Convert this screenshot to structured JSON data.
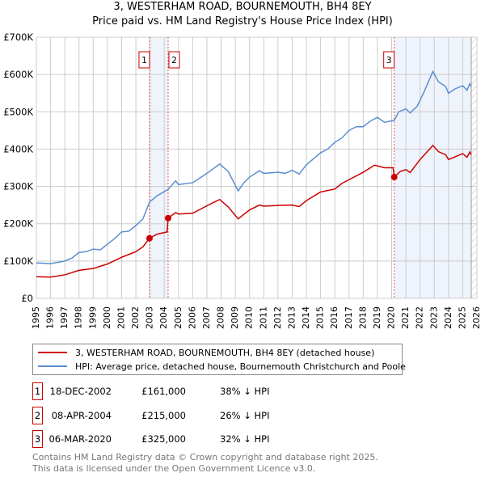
{
  "chart_data": {
    "type": "line",
    "title": "3, WESTERHAM ROAD, BOURNEMOUTH, BH4 8EY",
    "subtitle": "Price paid vs. HM Land Registry's House Price Index (HPI)",
    "xlim": [
      1995,
      2026
    ],
    "ylim": [
      0,
      700000
    ],
    "y_ticks": [
      0,
      100000,
      200000,
      300000,
      400000,
      500000,
      600000,
      700000
    ],
    "y_tick_labels": [
      "£0",
      "£100K",
      "£200K",
      "£300K",
      "£400K",
      "£500K",
      "£600K",
      "£700K"
    ],
    "x_ticks": [
      1995,
      1996,
      1997,
      1998,
      1999,
      2000,
      2001,
      2002,
      2003,
      2004,
      2005,
      2006,
      2007,
      2008,
      2009,
      2010,
      2011,
      2012,
      2013,
      2014,
      2015,
      2016,
      2017,
      2018,
      2019,
      2020,
      2021,
      2022,
      2023,
      2024,
      2025,
      2026
    ],
    "grid": true,
    "shaded": [
      [
        2002.96,
        2004.27
      ],
      [
        2020.18,
        2025.6
      ]
    ],
    "hatched_from": 2025.6,
    "series": [
      {
        "name": "3, WESTERHAM ROAD, BOURNEMOUTH, BH4 8EY (detached house)",
        "color": "#cc0000",
        "x": [
          1995,
          1996,
          1997,
          1998,
          1999,
          2000,
          2001,
          2002,
          2002.5,
          2002.96,
          2003.5,
          2004.2,
          2004.27,
          2004.8,
          2005,
          2006,
          2007,
          2007.9,
          2008.5,
          2009.2,
          2010,
          2010.7,
          2011,
          2012,
          2013,
          2013.5,
          2014,
          2015,
          2016,
          2016.5,
          2017,
          2018,
          2018.8,
          2019.5,
          2020.1,
          2020.18,
          2020.6,
          2021,
          2021.3,
          2022,
          2022.9,
          2023.3,
          2023.8,
          2024,
          2024.5,
          2025,
          2025.3,
          2025.5,
          2025.6
        ],
        "y": [
          58000,
          57000,
          63000,
          75000,
          80000,
          92000,
          110000,
          125000,
          138000,
          161000,
          172000,
          178000,
          215000,
          230000,
          226000,
          228000,
          248000,
          265000,
          245000,
          213000,
          237000,
          250000,
          247000,
          249000,
          250000,
          246000,
          262000,
          285000,
          293000,
          308000,
          318000,
          338000,
          357000,
          350000,
          350000,
          325000,
          340000,
          345000,
          337000,
          372000,
          410000,
          393000,
          385000,
          372000,
          380000,
          388000,
          378000,
          392000,
          385000
        ]
      },
      {
        "name": "HPI: Average price, detached house, Bournemouth Christchurch and Poole",
        "color": "#5b8fd0",
        "x": [
          1995,
          1996,
          1997,
          1997.5,
          1998,
          1998.5,
          1999,
          1999.5,
          2000,
          2000.5,
          2001,
          2001.5,
          2002,
          2002.5,
          2002.96,
          2003.5,
          2004.27,
          2004.8,
          2005,
          2006,
          2007,
          2007.9,
          2008.5,
          2009.2,
          2009.6,
          2010,
          2010.7,
          2011,
          2012,
          2012.5,
          2013,
          2013.5,
          2014,
          2015,
          2015.5,
          2016,
          2016.5,
          2017,
          2017.5,
          2018,
          2018.5,
          2019,
          2019.5,
          2020.18,
          2020.5,
          2021,
          2021.3,
          2021.8,
          2022.3,
          2022.9,
          2023.3,
          2023.8,
          2024,
          2024.5,
          2025,
          2025.3,
          2025.5,
          2025.6
        ],
        "y": [
          95000,
          93000,
          100000,
          108000,
          123000,
          125000,
          132000,
          130000,
          145000,
          160000,
          178000,
          180000,
          195000,
          213000,
          258000,
          275000,
          292000,
          315000,
          305000,
          310000,
          335000,
          360000,
          340000,
          288000,
          310000,
          325000,
          342000,
          335000,
          338000,
          335000,
          343000,
          333000,
          358000,
          390000,
          400000,
          418000,
          430000,
          450000,
          460000,
          460000,
          475000,
          485000,
          472000,
          477000,
          500000,
          508000,
          497000,
          515000,
          555000,
          608000,
          580000,
          568000,
          550000,
          562000,
          570000,
          558000,
          575000,
          568000
        ]
      }
    ],
    "sales": [
      {
        "label": "1",
        "x": 2002.96,
        "y": 161000,
        "date": "18-DEC-2002",
        "price": "£161,000",
        "hpi": "38% ↓ HPI"
      },
      {
        "label": "2",
        "x": 2004.27,
        "y": 215000,
        "date": "08-APR-2004",
        "price": "£215,000",
        "hpi": "26% ↓ HPI"
      },
      {
        "label": "3",
        "x": 2020.18,
        "y": 325000,
        "date": "06-MAR-2020",
        "price": "£325,000",
        "hpi": "32% ↓ HPI"
      }
    ]
  },
  "footer": {
    "line1": "Contains HM Land Registry data © Crown copyright and database right 2025.",
    "line2": "This data is licensed under the Open Government Licence v3.0."
  }
}
